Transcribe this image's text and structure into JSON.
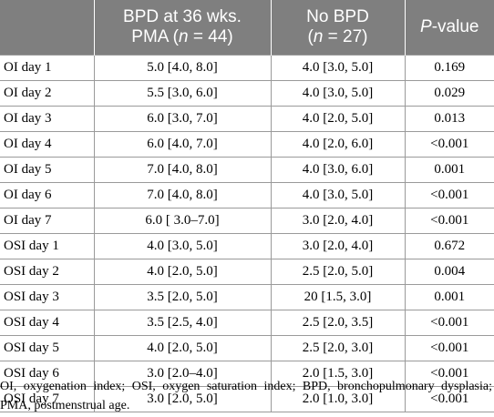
{
  "table": {
    "headers": [
      {
        "lines": [
          "",
          ""
        ]
      },
      {
        "lines": [
          "BPD at 36 wks.",
          "PMA (n = 44)"
        ]
      },
      {
        "lines": [
          "No BPD",
          "(n = 27)"
        ]
      },
      {
        "lines": [
          "P-value",
          ""
        ]
      }
    ],
    "rows": [
      [
        "OI day 1",
        "5.0 [4.0, 8.0]",
        "4.0 [3.0, 5.0]",
        "0.169"
      ],
      [
        "OI day 2",
        "5.5 [3.0, 6.0]",
        "4.0 [3.0, 5.0]",
        "0.029"
      ],
      [
        "OI day 3",
        "6.0 [3.0, 7.0]",
        "4.0 [2.0, 5.0]",
        "0.013"
      ],
      [
        "OI day 4",
        "6.0 [4.0, 7.0]",
        "4.0 [2.0, 6.0]",
        "<0.001"
      ],
      [
        "OI day 5",
        "7.0 [4.0, 8.0]",
        "4.0 [3.0, 6.0]",
        "0.001"
      ],
      [
        "OI day 6",
        "7.0 [4.0, 8.0]",
        "4.0 [3.0, 5.0]",
        "<0.001"
      ],
      [
        "OI day 7",
        "6.0 [ 3.0–7.0]",
        "3.0 [2.0, 4.0]",
        "<0.001"
      ],
      [
        "OSI day 1",
        "4.0 [3.0, 5.0]",
        "3.0 [2.0, 4.0]",
        "0.672"
      ],
      [
        "OSI day 2",
        "4.0 [2.0, 5.0]",
        "2.5 [2.0, 5.0]",
        "0.004"
      ],
      [
        "OSI day 3",
        "3.5 [2.0, 5.0]",
        "20 [1.5, 3.0]",
        "0.001"
      ],
      [
        "OSI day 4",
        "3.5 [2.5, 4.0]",
        "2.5 [2.0, 3.5]",
        "<0.001"
      ],
      [
        "OSI day 5",
        "4.0 [2.0, 5.0]",
        "2.5 [2.0, 3.0]",
        "<0.001"
      ],
      [
        "OSI day 6",
        "3.0 [2.0–4.0]",
        "2.0 [1.5, 3.0]",
        "<0.001"
      ],
      [
        "OSI day 7",
        "3.0 [2.0, 5.0]",
        "2.0 [1.0, 3.0]",
        "<0.001"
      ]
    ]
  },
  "footnote": "OI, oxygenation index; OSI, oxygen saturation index; BPD, bronchopulmonary dysplasia; PMA, postmenstrual age."
}
